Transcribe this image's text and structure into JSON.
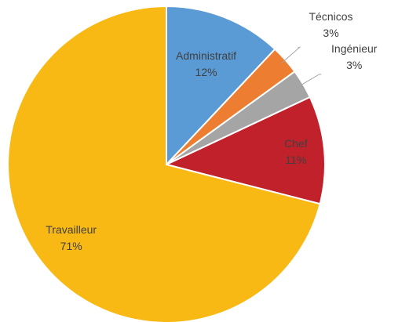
{
  "chart_data": {
    "type": "pie",
    "categories": [
      "Administratif",
      "Técnicos",
      "Ingénieur",
      "Chef",
      "Travailleur"
    ],
    "values": [
      12,
      3,
      3,
      11,
      71
    ],
    "value_labels": [
      "12%",
      "3%",
      "3%",
      "11%",
      "71%"
    ],
    "colors": [
      "#5b9bd5",
      "#ed7d31",
      "#a5a5a5",
      "#c0212b",
      "#f9b914"
    ]
  }
}
